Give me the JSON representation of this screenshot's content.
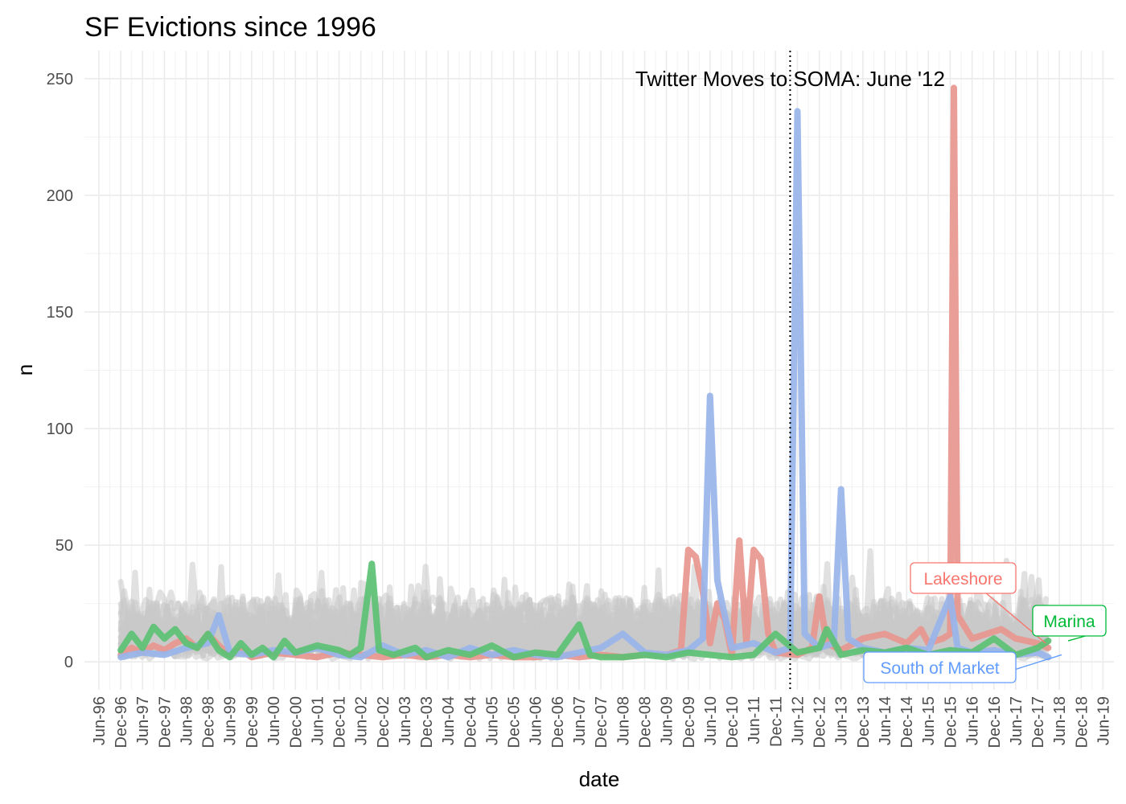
{
  "chart_data": {
    "type": "line",
    "title": "SF Evictions since 1996",
    "xlabel": "date",
    "ylabel": "n",
    "ylim": [
      -12,
      262
    ],
    "xlim": [
      "1996-02-01",
      "2019-09-01"
    ],
    "yticks": [
      0,
      50,
      100,
      150,
      200,
      250
    ],
    "xtick_labels": [
      "Jun-96",
      "Dec-96",
      "Jun-97",
      "Dec-97",
      "Jun-98",
      "Dec-98",
      "Jun-99",
      "Dec-99",
      "Jun-00",
      "Dec-00",
      "Jun-01",
      "Dec-01",
      "Jun-02",
      "Dec-02",
      "Jun-03",
      "Dec-03",
      "Jun-04",
      "Dec-04",
      "Jun-05",
      "Dec-05",
      "Jun-06",
      "Dec-06",
      "Jun-07",
      "Dec-07",
      "Jun-08",
      "Dec-08",
      "Jun-09",
      "Dec-09",
      "Jun-10",
      "Dec-10",
      "Jun-11",
      "Dec-11",
      "Jun-12",
      "Dec-12",
      "Jun-13",
      "Dec-13",
      "Jun-14",
      "Dec-14",
      "Jun-15",
      "Dec-15",
      "Jun-16",
      "Dec-16",
      "Jun-17",
      "Dec-17",
      "Jun-18",
      "Dec-18",
      "Jun-19"
    ],
    "grid": true,
    "legend": "none",
    "annotation": {
      "label": "Twitter Moves to SOMA: June '12",
      "x": "2012-04-01"
    },
    "series": [
      {
        "name": "Lakeshore",
        "color": "#e8968f",
        "label_color": "#f8766d",
        "points": [
          [
            "1996-12-01",
            3
          ],
          [
            "1997-03-01",
            6
          ],
          [
            "1997-06-01",
            4
          ],
          [
            "1997-09-01",
            7
          ],
          [
            "1997-12-01",
            5
          ],
          [
            "1998-03-01",
            8
          ],
          [
            "1998-06-01",
            10
          ],
          [
            "1998-09-01",
            6
          ],
          [
            "1998-12-01",
            12
          ],
          [
            "1999-03-01",
            7
          ],
          [
            "1999-06-01",
            3
          ],
          [
            "1999-09-01",
            5
          ],
          [
            "1999-12-01",
            2
          ],
          [
            "2000-06-01",
            4
          ],
          [
            "2000-12-01",
            3
          ],
          [
            "2001-06-01",
            2
          ],
          [
            "2001-12-01",
            4
          ],
          [
            "2002-06-01",
            3
          ],
          [
            "2002-12-01",
            2
          ],
          [
            "2003-06-01",
            3
          ],
          [
            "2003-12-01",
            2
          ],
          [
            "2004-06-01",
            3
          ],
          [
            "2004-12-01",
            2
          ],
          [
            "2005-06-01",
            3
          ],
          [
            "2005-12-01",
            2
          ],
          [
            "2006-06-01",
            2
          ],
          [
            "2006-12-01",
            3
          ],
          [
            "2007-06-01",
            2
          ],
          [
            "2007-12-01",
            3
          ],
          [
            "2008-06-01",
            2
          ],
          [
            "2008-12-01",
            3
          ],
          [
            "2009-06-01",
            3
          ],
          [
            "2009-10-01",
            5
          ],
          [
            "2009-12-01",
            48
          ],
          [
            "2010-02-01",
            45
          ],
          [
            "2010-04-01",
            30
          ],
          [
            "2010-06-01",
            8
          ],
          [
            "2010-08-01",
            25
          ],
          [
            "2010-10-01",
            18
          ],
          [
            "2010-12-01",
            3
          ],
          [
            "2011-02-01",
            52
          ],
          [
            "2011-04-01",
            8
          ],
          [
            "2011-06-01",
            48
          ],
          [
            "2011-08-01",
            44
          ],
          [
            "2011-10-01",
            12
          ],
          [
            "2011-12-01",
            4
          ],
          [
            "2012-06-01",
            3
          ],
          [
            "2012-10-01",
            6
          ],
          [
            "2012-12-01",
            28
          ],
          [
            "2013-02-01",
            8
          ],
          [
            "2013-06-01",
            5
          ],
          [
            "2013-12-01",
            10
          ],
          [
            "2014-06-01",
            12
          ],
          [
            "2014-12-01",
            8
          ],
          [
            "2015-04-01",
            14
          ],
          [
            "2015-06-01",
            8
          ],
          [
            "2015-10-01",
            10
          ],
          [
            "2015-12-01",
            12
          ],
          [
            "2016-01-01",
            246
          ],
          [
            "2016-02-01",
            20
          ],
          [
            "2016-06-01",
            10
          ],
          [
            "2016-10-01",
            12
          ],
          [
            "2017-02-01",
            14
          ],
          [
            "2017-06-01",
            10
          ],
          [
            "2017-12-01",
            8
          ],
          [
            "2018-03-01",
            6
          ]
        ]
      },
      {
        "name": "South of Market",
        "color": "#99b4ea",
        "label_color": "#619cff",
        "points": [
          [
            "1996-12-01",
            2
          ],
          [
            "1997-06-01",
            4
          ],
          [
            "1997-12-01",
            3
          ],
          [
            "1998-06-01",
            6
          ],
          [
            "1998-12-01",
            8
          ],
          [
            "1999-03-01",
            20
          ],
          [
            "1999-06-01",
            4
          ],
          [
            "1999-12-01",
            3
          ],
          [
            "2000-06-01",
            5
          ],
          [
            "2000-12-01",
            4
          ],
          [
            "2001-06-01",
            6
          ],
          [
            "2001-12-01",
            3
          ],
          [
            "2002-06-01",
            2
          ],
          [
            "2002-12-01",
            7
          ],
          [
            "2003-06-01",
            3
          ],
          [
            "2003-12-01",
            5
          ],
          [
            "2004-06-01",
            2
          ],
          [
            "2004-12-01",
            6
          ],
          [
            "2005-06-01",
            3
          ],
          [
            "2005-12-01",
            5
          ],
          [
            "2006-06-01",
            3
          ],
          [
            "2006-12-01",
            2
          ],
          [
            "2007-06-01",
            4
          ],
          [
            "2007-12-01",
            6
          ],
          [
            "2008-06-01",
            12
          ],
          [
            "2008-12-01",
            4
          ],
          [
            "2009-06-01",
            3
          ],
          [
            "2009-12-01",
            5
          ],
          [
            "2010-04-01",
            10
          ],
          [
            "2010-06-01",
            114
          ],
          [
            "2010-08-01",
            35
          ],
          [
            "2010-10-01",
            20
          ],
          [
            "2010-12-01",
            6
          ],
          [
            "2011-06-01",
            8
          ],
          [
            "2011-12-01",
            4
          ],
          [
            "2012-04-01",
            6
          ],
          [
            "2012-06-01",
            236
          ],
          [
            "2012-08-01",
            12
          ],
          [
            "2012-12-01",
            6
          ],
          [
            "2013-04-01",
            8
          ],
          [
            "2013-06-01",
            74
          ],
          [
            "2013-08-01",
            10
          ],
          [
            "2013-12-01",
            6
          ],
          [
            "2014-06-01",
            4
          ],
          [
            "2014-12-01",
            6
          ],
          [
            "2015-06-01",
            5
          ],
          [
            "2015-12-01",
            28
          ],
          [
            "2016-02-01",
            6
          ],
          [
            "2016-06-01",
            4
          ],
          [
            "2016-12-01",
            5
          ],
          [
            "2017-06-01",
            3
          ],
          [
            "2017-12-01",
            4
          ],
          [
            "2018-03-01",
            2
          ]
        ]
      },
      {
        "name": "Marina",
        "color": "#5cc173",
        "label_color": "#00ba38",
        "points": [
          [
            "1996-12-01",
            5
          ],
          [
            "1997-03-01",
            12
          ],
          [
            "1997-06-01",
            6
          ],
          [
            "1997-09-01",
            15
          ],
          [
            "1997-12-01",
            10
          ],
          [
            "1998-03-01",
            14
          ],
          [
            "1998-06-01",
            8
          ],
          [
            "1998-09-01",
            6
          ],
          [
            "1998-12-01",
            12
          ],
          [
            "1999-03-01",
            5
          ],
          [
            "1999-06-01",
            2
          ],
          [
            "1999-09-01",
            8
          ],
          [
            "1999-12-01",
            3
          ],
          [
            "2000-03-01",
            6
          ],
          [
            "2000-06-01",
            2
          ],
          [
            "2000-09-01",
            9
          ],
          [
            "2000-12-01",
            4
          ],
          [
            "2001-06-01",
            7
          ],
          [
            "2001-12-01",
            5
          ],
          [
            "2002-03-01",
            3
          ],
          [
            "2002-06-01",
            6
          ],
          [
            "2002-09-01",
            42
          ],
          [
            "2002-11-01",
            5
          ],
          [
            "2003-03-01",
            3
          ],
          [
            "2003-09-01",
            6
          ],
          [
            "2003-12-01",
            2
          ],
          [
            "2004-06-01",
            5
          ],
          [
            "2004-12-01",
            3
          ],
          [
            "2005-06-01",
            7
          ],
          [
            "2005-12-01",
            2
          ],
          [
            "2006-06-01",
            4
          ],
          [
            "2006-12-01",
            3
          ],
          [
            "2007-06-01",
            16
          ],
          [
            "2007-09-01",
            3
          ],
          [
            "2007-12-01",
            2
          ],
          [
            "2008-06-01",
            2
          ],
          [
            "2008-12-01",
            3
          ],
          [
            "2009-06-01",
            2
          ],
          [
            "2009-12-01",
            4
          ],
          [
            "2010-06-01",
            3
          ],
          [
            "2010-12-01",
            2
          ],
          [
            "2011-06-01",
            3
          ],
          [
            "2011-12-01",
            12
          ],
          [
            "2012-06-01",
            4
          ],
          [
            "2012-12-01",
            6
          ],
          [
            "2013-02-01",
            14
          ],
          [
            "2013-06-01",
            3
          ],
          [
            "2013-12-01",
            5
          ],
          [
            "2014-06-01",
            4
          ],
          [
            "2014-12-01",
            6
          ],
          [
            "2015-06-01",
            3
          ],
          [
            "2015-12-01",
            5
          ],
          [
            "2016-06-01",
            4
          ],
          [
            "2016-12-01",
            10
          ],
          [
            "2017-06-01",
            3
          ],
          [
            "2017-12-01",
            6
          ],
          [
            "2018-03-01",
            9
          ]
        ]
      }
    ],
    "background_series_color": "#c8c8c8"
  }
}
